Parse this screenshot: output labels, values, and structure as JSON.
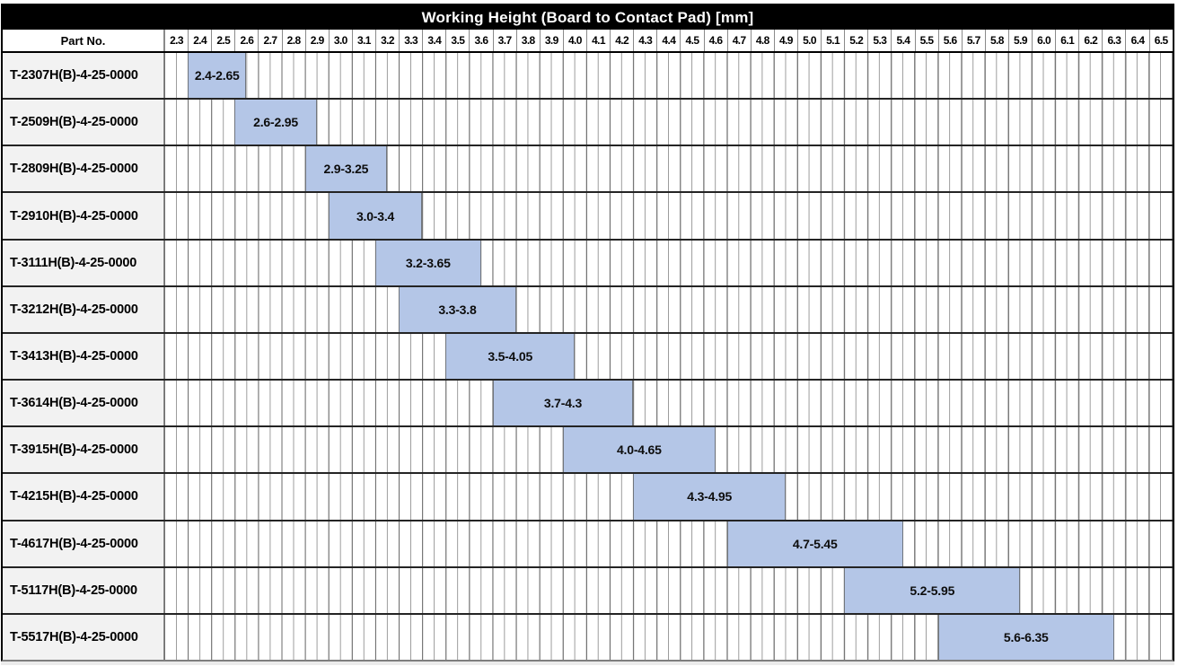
{
  "title": "Working Height (Board to Contact Pad) [mm]",
  "part_column_header": "Part No.",
  "colors": {
    "title_bg": "#000000",
    "title_text": "#ffffff",
    "bar_fill": "#b4c6e7",
    "part_cell_bg": "#f2f2f2",
    "grid_line_major": "#6f6f6f",
    "grid_line_minor": "#9a9a9a",
    "row_separator": "#242424"
  },
  "chart_data": {
    "type": "bar",
    "subtype": "horizontal-range",
    "title": "Working Height (Board to Contact Pad) [mm]",
    "xlim": [
      2.3,
      6.6
    ],
    "tick_step": 0.1,
    "minor_grid_step": 0.05,
    "grid": true,
    "legend": false,
    "xticks": [
      "2.3",
      "2.4",
      "2.5",
      "2.6",
      "2.7",
      "2.8",
      "2.9",
      "3.0",
      "3.1",
      "3.2",
      "3.3",
      "3.4",
      "3.5",
      "3.6",
      "3.7",
      "3.8",
      "3.9",
      "4.0",
      "4.1",
      "4.2",
      "4.3",
      "4.4",
      "4.5",
      "4.6",
      "4.7",
      "4.8",
      "4.9",
      "5.0",
      "5.1",
      "5.2",
      "5.3",
      "5.4",
      "5.5",
      "5.6",
      "5.7",
      "5.8",
      "5.9",
      "6.0",
      "6.1",
      "6.2",
      "6.3",
      "6.4",
      "6.5"
    ],
    "rows": [
      {
        "part_no": "T-2307H(B)-4-25-0000",
        "start": 2.4,
        "end": 2.65,
        "range_label": "2.4-2.65"
      },
      {
        "part_no": "T-2509H(B)-4-25-0000",
        "start": 2.6,
        "end": 2.95,
        "range_label": "2.6-2.95"
      },
      {
        "part_no": "T-2809H(B)-4-25-0000",
        "start": 2.9,
        "end": 3.25,
        "range_label": "2.9-3.25"
      },
      {
        "part_no": "T-2910H(B)-4-25-0000",
        "start": 3.0,
        "end": 3.4,
        "range_label": "3.0-3.4"
      },
      {
        "part_no": "T-3111H(B)-4-25-0000",
        "start": 3.2,
        "end": 3.65,
        "range_label": "3.2-3.65"
      },
      {
        "part_no": "T-3212H(B)-4-25-0000",
        "start": 3.3,
        "end": 3.8,
        "range_label": "3.3-3.8"
      },
      {
        "part_no": "T-3413H(B)-4-25-0000",
        "start": 3.5,
        "end": 4.05,
        "range_label": "3.5-4.05"
      },
      {
        "part_no": "T-3614H(B)-4-25-0000",
        "start": 3.7,
        "end": 4.3,
        "range_label": "3.7-4.3"
      },
      {
        "part_no": "T-3915H(B)-4-25-0000",
        "start": 4.0,
        "end": 4.65,
        "range_label": "4.0-4.65"
      },
      {
        "part_no": "T-4215H(B)-4-25-0000",
        "start": 4.3,
        "end": 4.95,
        "range_label": "4.3-4.95"
      },
      {
        "part_no": "T-4617H(B)-4-25-0000",
        "start": 4.7,
        "end": 5.45,
        "range_label": "4.7-5.45"
      },
      {
        "part_no": "T-5117H(B)-4-25-0000",
        "start": 5.2,
        "end": 5.95,
        "range_label": "5.2-5.95"
      },
      {
        "part_no": "T-5517H(B)-4-25-0000",
        "start": 5.6,
        "end": 6.35,
        "range_label": "5.6-6.35"
      }
    ]
  }
}
